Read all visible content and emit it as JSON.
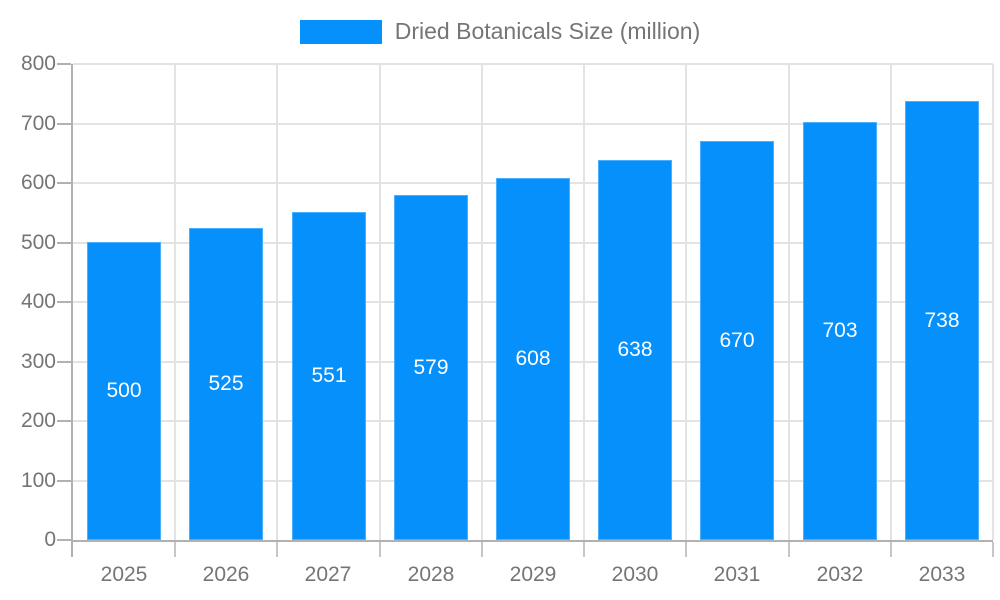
{
  "legend": {
    "label": "Dried Botanicals Size (million)"
  },
  "chart_data": {
    "type": "bar",
    "title": "Dried Botanicals Size (million)",
    "categories": [
      "2025",
      "2026",
      "2027",
      "2028",
      "2029",
      "2030",
      "2031",
      "2032",
      "2033"
    ],
    "values": [
      500,
      525,
      551,
      579,
      608,
      638,
      670,
      703,
      738
    ],
    "series": [
      {
        "name": "Dried Botanicals Size (million)",
        "values": [
          500,
          525,
          551,
          579,
          608,
          638,
          670,
          703,
          738
        ]
      }
    ],
    "xlabel": "",
    "ylabel": "",
    "ylim": [
      0,
      800
    ],
    "yticks": [
      0,
      100,
      200,
      300,
      400,
      500,
      600,
      700,
      800
    ],
    "grid": true,
    "legend_position": "top",
    "colors": {
      "bar": "#0590FB",
      "bar_label": "#FFFFFF",
      "axis_text": "#757575",
      "grid_line": "#E3E3E3",
      "axis_line": "#B1B1B1",
      "background": "#FFFFFF"
    }
  }
}
